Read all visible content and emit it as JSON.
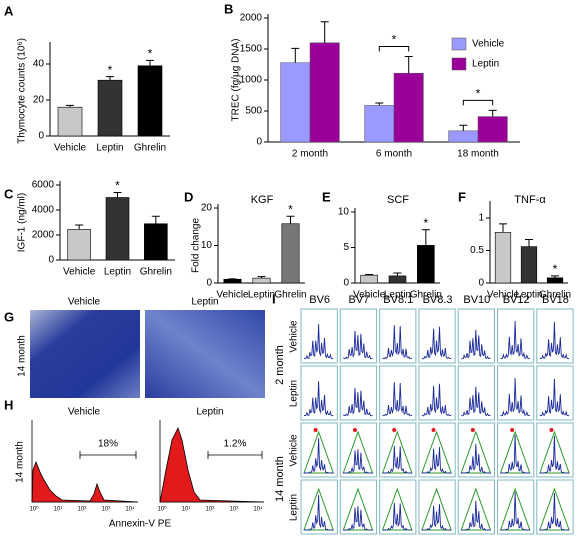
{
  "chart_data": [
    {
      "type": "bar",
      "panel": "A",
      "ylabel": "Thymocyte counts (10⁶)",
      "categories": [
        "Vehicle",
        "Leptin",
        "Ghrelin"
      ],
      "values": [
        16,
        31,
        39
      ],
      "errors": [
        1,
        2,
        3
      ],
      "colors": [
        "#c8c8c8",
        "#333333",
        "#000000"
      ],
      "ylim": [
        0,
        50
      ],
      "yticks": [
        0,
        20,
        40
      ],
      "annotations": [
        {
          "text": "*",
          "category": "Leptin"
        },
        {
          "text": "*",
          "category": "Ghrelin"
        }
      ]
    },
    {
      "type": "grouped-bar",
      "panel": "B",
      "ylabel": "TREC (fg/µg DNA)",
      "categories": [
        "2 month",
        "6 month",
        "18 month"
      ],
      "series": [
        {
          "name": "Vehicle",
          "color": "#9999ff",
          "values": [
            1280,
            590,
            180
          ],
          "errors": [
            230,
            40,
            90
          ]
        },
        {
          "name": "Leptin",
          "color": "#990099",
          "values": [
            1600,
            1110,
            410
          ],
          "errors": [
            340,
            270,
            100
          ]
        }
      ],
      "ylim": [
        0,
        2000
      ],
      "yticks": [
        0,
        500,
        1000,
        1500,
        2000
      ],
      "annotations": [
        {
          "text": "*",
          "category": "6 month"
        },
        {
          "text": "*",
          "category": "18 month"
        }
      ]
    },
    {
      "type": "bar",
      "panel": "C",
      "ylabel": "IGF-1 (ng/ml)",
      "categories": [
        "Vehicle",
        "Leptin",
        "Ghrelin"
      ],
      "values": [
        2450,
        5000,
        2900
      ],
      "errors": [
        350,
        400,
        600
      ],
      "colors": [
        "#c8c8c8",
        "#333333",
        "#000000"
      ],
      "ylim": [
        0,
        6000
      ],
      "yticks": [
        0,
        2000,
        4000,
        6000
      ],
      "annotations": [
        {
          "text": "*",
          "category": "Leptin"
        }
      ]
    },
    {
      "type": "bar",
      "panel": "D",
      "title": "KGF",
      "ylabel": "Fold change",
      "categories": [
        "Vehicle",
        "Leptin",
        "Ghrelin"
      ],
      "values": [
        1,
        1.3,
        15.8
      ],
      "errors": [
        0.1,
        0.4,
        2
      ],
      "colors": [
        "#000000",
        "#c8c8c8",
        "#777777"
      ],
      "ylim": [
        0,
        20
      ],
      "yticks": [
        0,
        10,
        20
      ],
      "annotations": [
        {
          "text": "*",
          "category": "Ghrelin"
        }
      ]
    },
    {
      "type": "bar",
      "panel": "E",
      "title": "SCF",
      "categories": [
        "Vehicle",
        "Leptin",
        "Ghrelin"
      ],
      "values": [
        1.1,
        1.0,
        5.3
      ],
      "errors": [
        0.1,
        0.4,
        2.2
      ],
      "colors": [
        "#c8c8c8",
        "#333333",
        "#000000"
      ],
      "ylim": [
        0,
        10
      ],
      "yticks": [
        0,
        5,
        10
      ],
      "annotations": [
        {
          "text": "*",
          "category": "Ghrelin"
        }
      ]
    },
    {
      "type": "bar",
      "panel": "F",
      "title": "TNF-α",
      "categories": [
        "Vehicle",
        "Leptin",
        "Ghrelin"
      ],
      "values": [
        0.78,
        0.56,
        0.08
      ],
      "errors": [
        0.13,
        0.11,
        0.03
      ],
      "colors": [
        "#c8c8c8",
        "#333333",
        "#000000"
      ],
      "ylim": [
        0,
        1.2
      ],
      "yticks": [
        0,
        0.5,
        1
      ],
      "annotations": [
        {
          "text": "*",
          "category": "Ghrelin"
        }
      ]
    }
  ],
  "panel_g": {
    "panel": "G",
    "row_label": "14 month",
    "images": [
      "Vehicle",
      "Leptin"
    ]
  },
  "panel_h": {
    "panel": "H",
    "row_label": "14 month",
    "x_label": "Annexin-V PE",
    "x_tick_labels": [
      "10⁰",
      "10¹",
      "10²",
      "10³",
      "10⁴"
    ],
    "plots": [
      {
        "title": "Vehicle",
        "gate": "18%"
      },
      {
        "title": "Leptin",
        "gate": "1.2%"
      }
    ]
  },
  "panel_i": {
    "panel": "I",
    "columns": [
      "BV6",
      "BV7",
      "BV8.1",
      "BV8.3",
      "BV10",
      "BV12",
      "BV18"
    ],
    "groups": [
      {
        "age": "2 month",
        "rows": [
          "Vehicle",
          "Leptin"
        ]
      },
      {
        "age": "14 month",
        "rows": [
          "Vehicle",
          "Leptin"
        ]
      }
    ]
  }
}
